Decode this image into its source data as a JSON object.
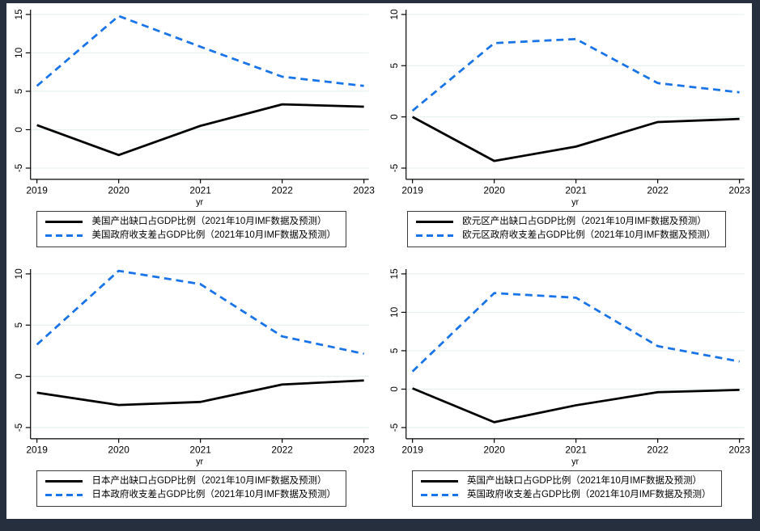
{
  "colors": {
    "line_black": "#000000",
    "line_blue": "#1874e8",
    "frame_border": "#262f3d",
    "gridline": "#e8f1ef",
    "axis": "#000000",
    "plot_background": "#ffffff"
  },
  "chart_data": [
    {
      "type": "line",
      "region": "美国",
      "x": [
        2019,
        2020,
        2021,
        2022,
        2023
      ],
      "xlabel": "yr",
      "ylim": [
        -5,
        15
      ],
      "yticks": [
        -5,
        0,
        5,
        10,
        15
      ],
      "grid": true,
      "legend_position": "below",
      "series": [
        {
          "name": "美国产出缺口占GDP比例（2021年10月IMF数据及预测）",
          "style": "solid",
          "color": "#000000",
          "values": [
            0.6,
            -3.3,
            0.5,
            3.3,
            3.0
          ]
        },
        {
          "name": "美国政府收支差占GDP比例（2021年10月IMF数据及预测）",
          "style": "dashed",
          "color": "#1874e8",
          "values": [
            5.7,
            14.8,
            10.8,
            6.9,
            5.7
          ]
        }
      ]
    },
    {
      "type": "line",
      "region": "欧元区",
      "x": [
        2019,
        2020,
        2021,
        2022,
        2023
      ],
      "xlabel": "yr",
      "ylim": [
        -5,
        10
      ],
      "yticks": [
        -5,
        0,
        5,
        10
      ],
      "grid": true,
      "legend_position": "below",
      "series": [
        {
          "name": "欧元区产出缺口占GDP比例（2021年10月IMF数据及预测）",
          "style": "solid",
          "color": "#000000",
          "values": [
            0.0,
            -4.3,
            -2.9,
            -0.5,
            -0.2
          ]
        },
        {
          "name": "欧元区政府收支差占GDP比例（2021年10月IMF数据及预测）",
          "style": "dashed",
          "color": "#1874e8",
          "values": [
            0.6,
            7.2,
            7.6,
            3.3,
            2.4
          ]
        }
      ]
    },
    {
      "type": "line",
      "region": "日本",
      "x": [
        2019,
        2020,
        2021,
        2022,
        2023
      ],
      "xlabel": "yr",
      "ylim": [
        -5,
        10
      ],
      "yticks": [
        -5,
        0,
        5,
        10
      ],
      "grid": true,
      "legend_position": "below",
      "series": [
        {
          "name": "日本产出缺口占GDP比例（2021年10月IMF数据及预测）",
          "style": "solid",
          "color": "#000000",
          "values": [
            -1.6,
            -2.8,
            -2.5,
            -0.8,
            -0.4
          ]
        },
        {
          "name": "日本政府收支差占GDP比例（2021年10月IMF数据及预测）",
          "style": "dashed",
          "color": "#1874e8",
          "values": [
            3.1,
            10.3,
            9.0,
            3.9,
            2.2
          ]
        }
      ]
    },
    {
      "type": "line",
      "region": "英国",
      "x": [
        2019,
        2020,
        2021,
        2022,
        2023
      ],
      "xlabel": "yr",
      "ylim": [
        -5,
        15
      ],
      "yticks": [
        -5,
        0,
        5,
        10,
        15
      ],
      "grid": true,
      "legend_position": "below",
      "series": [
        {
          "name": "英国产出缺口占GDP比例（2021年10月IMF数据及预测）",
          "style": "solid",
          "color": "#000000",
          "values": [
            0.1,
            -4.3,
            -2.1,
            -0.4,
            -0.1
          ]
        },
        {
          "name": "英国政府收支差占GDP比例（2021年10月IMF数据及预测）",
          "style": "dashed",
          "color": "#1874e8",
          "values": [
            2.3,
            12.5,
            11.9,
            5.6,
            3.6
          ]
        }
      ]
    }
  ]
}
